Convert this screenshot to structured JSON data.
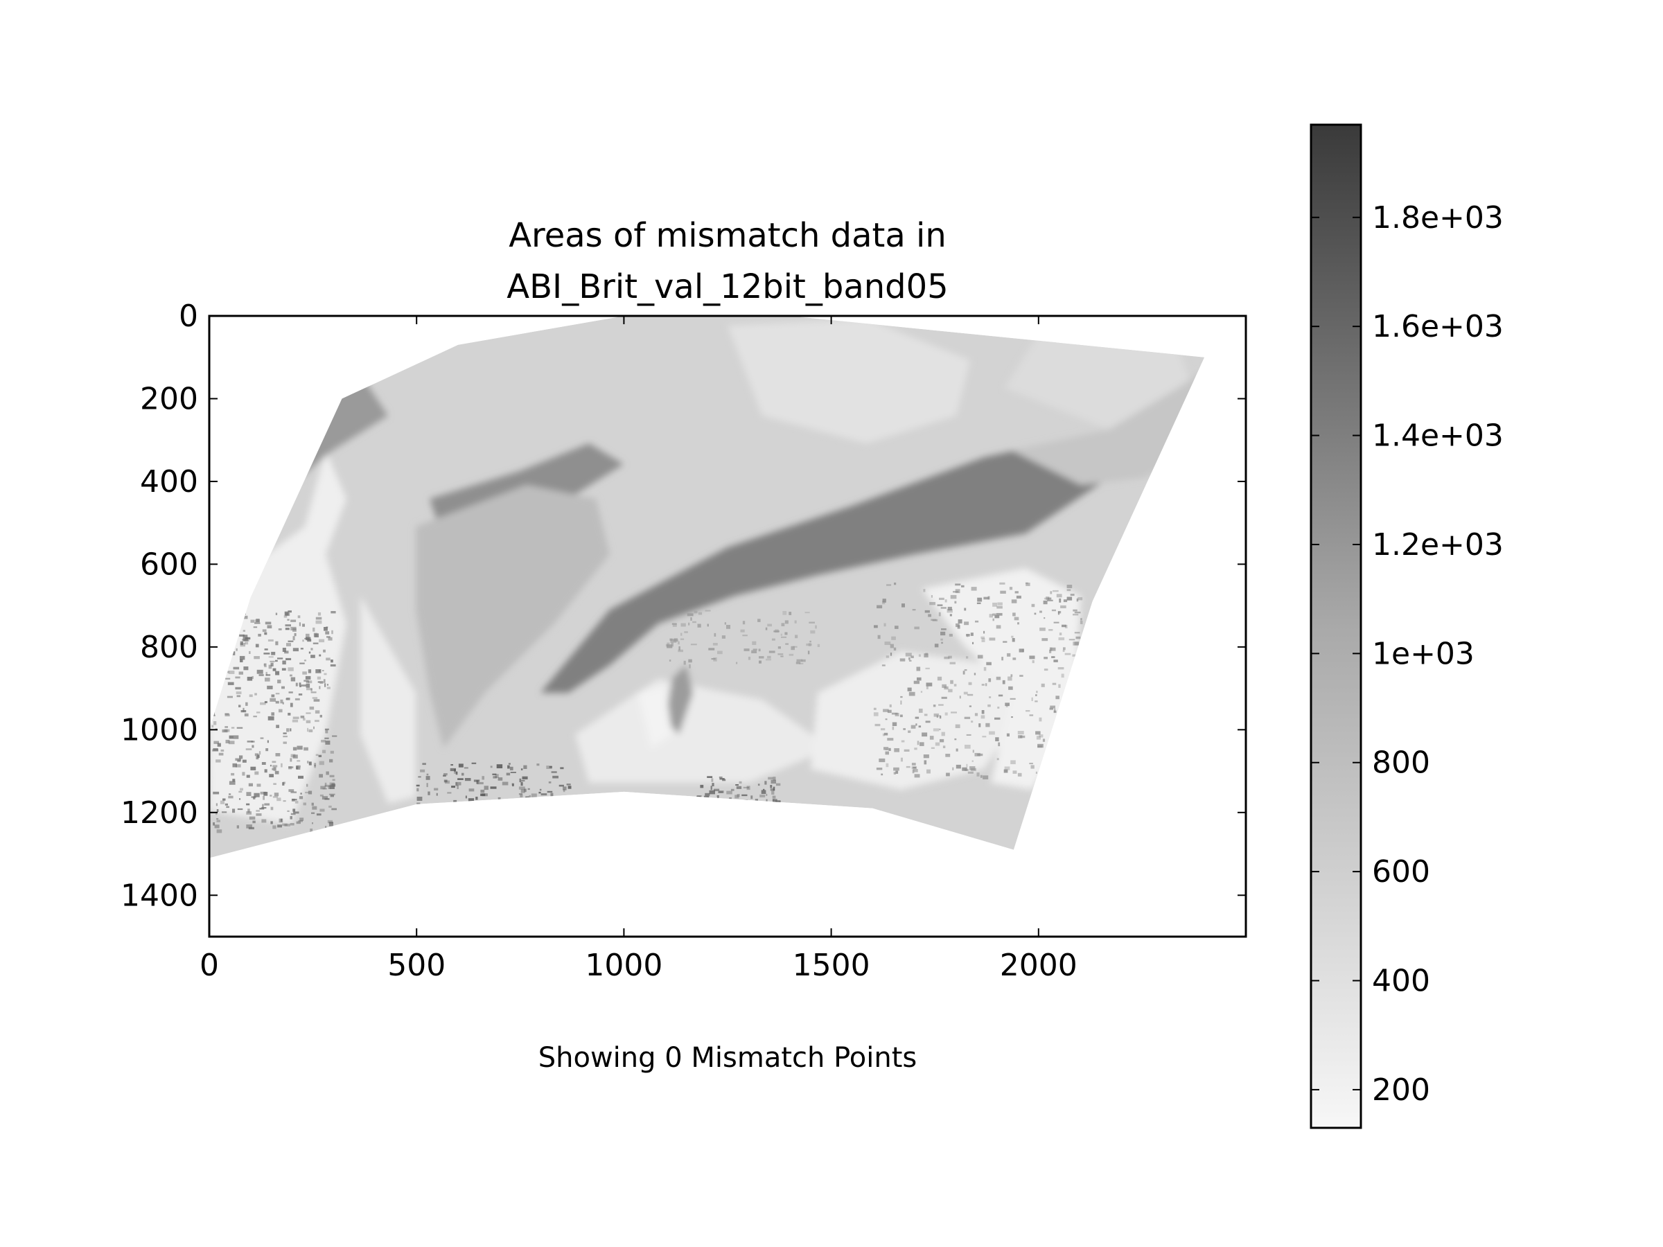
{
  "chart_data": {
    "type": "heatmap",
    "title_lines": [
      "Areas of mismatch data in",
      "ABI_Brit_val_12bit_band05"
    ],
    "xlabel": "Showing 0 Mismatch Points",
    "ylabel": "",
    "x_ticks": [
      0,
      500,
      1000,
      1500,
      2000
    ],
    "y_ticks": [
      0,
      200,
      400,
      600,
      800,
      1000,
      1200,
      1400
    ],
    "xlim": [
      0,
      2500
    ],
    "ylim": [
      1500,
      0
    ],
    "y_inverted": true,
    "grid": false,
    "colormap": "greys",
    "colorbar": {
      "range": [
        130,
        1970
      ],
      "ticks": [
        200,
        400,
        600,
        800,
        1000,
        1200,
        1400,
        1600,
        1800
      ],
      "tick_labels": [
        "200",
        "400",
        "600",
        "800",
        "1e+03",
        "1.2e+03",
        "1.4e+03",
        "1.6e+03",
        "1.8e+03"
      ],
      "color_low": "#f7f7f7",
      "color_high": "#3a3a3a"
    },
    "image_footprint": {
      "description_units": "data (pixel column, pixel row)",
      "top_edge": [
        [
          320,
          200
        ],
        [
          600,
          70
        ],
        [
          1000,
          0
        ],
        [
          1400,
          0
        ],
        [
          2400,
          100
        ]
      ],
      "right_edge": [
        [
          2400,
          100
        ],
        [
          2130,
          690
        ],
        [
          1940,
          1290
        ]
      ],
      "bottom_edge": [
        [
          1940,
          1290
        ],
        [
          1600,
          1190
        ],
        [
          1000,
          1150
        ],
        [
          500,
          1180
        ],
        [
          0,
          1310
        ]
      ],
      "left_edge": [
        [
          0,
          1310
        ],
        [
          0,
          1000
        ],
        [
          100,
          680
        ],
        [
          320,
          200
        ]
      ]
    }
  }
}
